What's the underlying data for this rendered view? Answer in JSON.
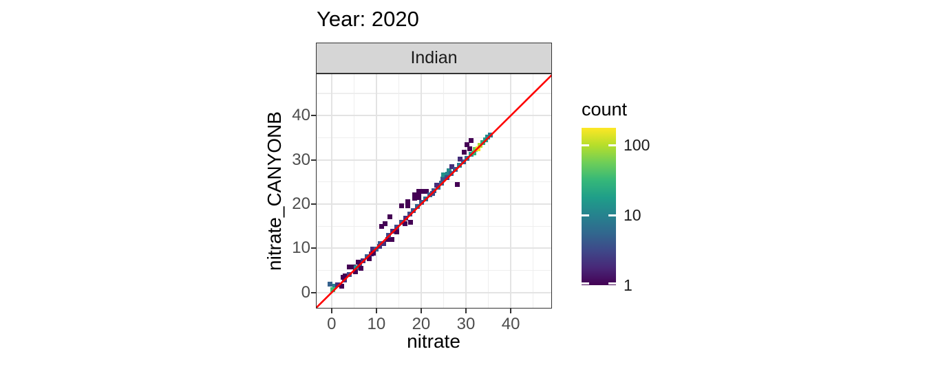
{
  "title": "Year: 2020",
  "facet": {
    "label": "Indian"
  },
  "axes": {
    "x": {
      "label": "nitrate",
      "ticks": [
        0,
        10,
        20,
        30,
        40
      ],
      "minor_ticks": [
        5,
        15,
        25,
        35,
        45
      ],
      "domain": [
        -3.5,
        49.2
      ]
    },
    "y": {
      "label": "nitrate_CANYONB",
      "ticks": [
        0,
        10,
        20,
        30,
        40
      ],
      "minor_ticks": [
        5,
        15,
        25,
        35,
        45
      ],
      "domain": [
        -3.6,
        49.5
      ]
    }
  },
  "legend": {
    "title": "count",
    "scale": "log10",
    "min": 1,
    "max": 180,
    "ticks": [
      {
        "value": 100,
        "label": "100"
      },
      {
        "value": 10,
        "label": "10"
      },
      {
        "value": 1,
        "label": "1"
      }
    ]
  },
  "colors": {
    "refline": "#fe0000",
    "panel_bg": "#ffffff",
    "panel_border": "#333333",
    "grid_major": "#e3e3e3",
    "grid_minor": "#eeeeee",
    "strip_fill": "#d6d6d6",
    "tick_label": "#4d4d4d",
    "viridis": [
      "#440154",
      "#482878",
      "#3e4989",
      "#31688e",
      "#26828e",
      "#1f9e89",
      "#35b779",
      "#6ece58",
      "#b5de2b",
      "#fde725"
    ]
  },
  "chart_data": {
    "type": "heatmap",
    "subtype": "bin2d-scatter",
    "title": "Year: 2020",
    "facet": "Indian",
    "xlabel": "nitrate",
    "ylabel": "nitrate_CANYONB",
    "xlim": [
      -3.5,
      49.2
    ],
    "ylim": [
      -3.6,
      49.5
    ],
    "grid": true,
    "legend_position": "right",
    "color_scale": {
      "name": "viridis",
      "transform": "log10",
      "range": [
        1,
        180
      ],
      "title": "count"
    },
    "ref_line": {
      "slope": 1,
      "intercept": 0,
      "color": "#fe0000"
    },
    "bin_size": 1.1,
    "tile_format": [
      "x",
      "y",
      "count"
    ],
    "tiles": [
      [
        -0.3,
        1.9,
        5
      ],
      [
        0.7,
        1.4,
        10
      ],
      [
        0.2,
        0.6,
        35
      ],
      [
        1.4,
        1.7,
        2
      ],
      [
        2.2,
        1.4,
        1
      ],
      [
        2.9,
        2.8,
        2
      ],
      [
        3.1,
        3.7,
        1
      ],
      [
        3.9,
        4.1,
        3
      ],
      [
        4.0,
        5.8,
        1
      ],
      [
        4.9,
        5.8,
        1
      ],
      [
        5.5,
        5.6,
        12
      ],
      [
        5.3,
        4.7,
        1
      ],
      [
        6.2,
        6.3,
        4
      ],
      [
        6.6,
        5.5,
        1
      ],
      [
        7.1,
        7.2,
        2
      ],
      [
        8.0,
        8.1,
        4
      ],
      [
        8.9,
        8.8,
        2
      ],
      [
        9.1,
        9.9,
        2
      ],
      [
        9.9,
        9.8,
        5
      ],
      [
        10.7,
        10.5,
        2
      ],
      [
        10.9,
        11.1,
        4
      ],
      [
        11.7,
        11.0,
        2
      ],
      [
        12.6,
        12.0,
        1
      ],
      [
        13.5,
        12.0,
        1
      ],
      [
        12.7,
        12.9,
        3
      ],
      [
        13.6,
        13.8,
        2
      ],
      [
        14.5,
        13.7,
        1
      ],
      [
        14.6,
        14.8,
        3
      ],
      [
        15.6,
        15.9,
        4
      ],
      [
        16.4,
        15.6,
        1
      ],
      [
        16.5,
        16.8,
        2
      ],
      [
        17.4,
        17.7,
        3
      ],
      [
        17.6,
        15.9,
        1
      ],
      [
        11.2,
        14.9,
        1
      ],
      [
        12.0,
        15.5,
        1
      ],
      [
        13.0,
        17.1,
        1
      ],
      [
        15.7,
        19.6,
        1
      ],
      [
        17.0,
        19.6,
        1
      ],
      [
        17.0,
        20.5,
        1
      ],
      [
        18.3,
        18.6,
        4
      ],
      [
        19.2,
        19.5,
        5
      ],
      [
        18.5,
        21.3,
        1
      ],
      [
        19.4,
        21.4,
        1
      ],
      [
        19.4,
        22.9,
        1
      ],
      [
        20.3,
        22.9,
        1
      ],
      [
        21.2,
        22.9,
        1
      ],
      [
        20.1,
        20.4,
        4
      ],
      [
        21.0,
        21.2,
        6
      ],
      [
        21.9,
        22.1,
        5
      ],
      [
        22.8,
        23.0,
        4
      ],
      [
        23.7,
        23.8,
        6
      ],
      [
        24.6,
        24.7,
        5
      ],
      [
        24.9,
        25.7,
        4
      ],
      [
        25.0,
        26.6,
        14
      ],
      [
        25.9,
        26.8,
        10
      ],
      [
        26.2,
        27.6,
        12
      ],
      [
        26.9,
        28.4,
        2
      ],
      [
        25.8,
        26.0,
        3
      ],
      [
        28.0,
        24.5,
        1
      ],
      [
        26.7,
        26.9,
        5
      ],
      [
        27.6,
        27.8,
        4
      ],
      [
        28.5,
        28.7,
        8
      ],
      [
        29.4,
        29.5,
        5
      ],
      [
        28.7,
        30.1,
        2
      ],
      [
        29.6,
        31.7,
        1
      ],
      [
        30.3,
        33.4,
        1
      ],
      [
        31.2,
        34.3,
        1
      ],
      [
        30.8,
        32.5,
        1
      ],
      [
        30.3,
        30.4,
        6
      ],
      [
        31.2,
        31.3,
        15
      ],
      [
        31.8,
        31.5,
        30
      ],
      [
        32.1,
        32.3,
        60
      ],
      [
        32.7,
        32.5,
        176
      ],
      [
        33.1,
        33.3,
        90
      ],
      [
        33.7,
        33.9,
        25
      ],
      [
        34.3,
        34.5,
        18
      ],
      [
        34.9,
        35.1,
        12
      ],
      [
        35.4,
        35.6,
        8
      ],
      [
        18.6,
        22.1,
        1
      ],
      [
        19.5,
        22.2,
        1
      ],
      [
        9.4,
        8.9,
        1
      ],
      [
        2.5,
        3.4,
        1
      ],
      [
        6.0,
        6.9,
        1
      ],
      [
        8.4,
        7.6,
        1
      ],
      [
        23.4,
        24.2,
        2
      ],
      [
        22.5,
        22.4,
        3
      ]
    ]
  }
}
